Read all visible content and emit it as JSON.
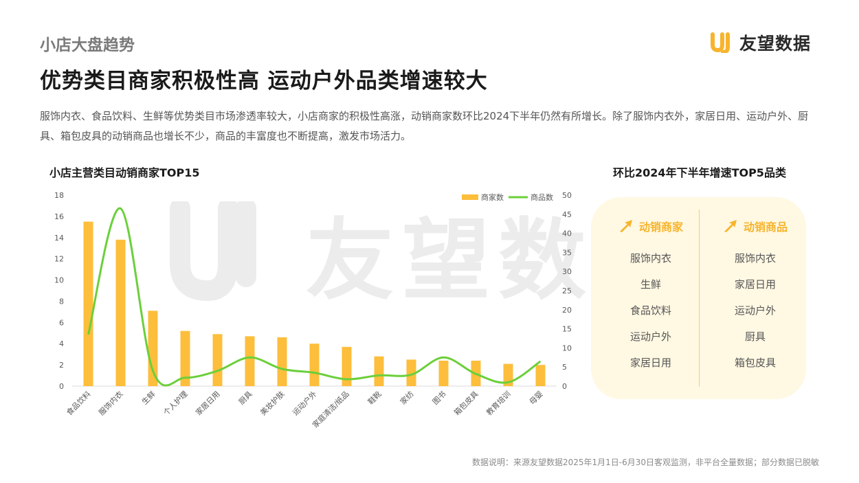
{
  "page": {
    "section_label": "小店大盘趋势",
    "brand": "友望数据",
    "headline": "优势类目商家积极性高 运动户外品类增速较大",
    "summary": "服饰内衣、食品饮料、生鲜等优势类目市场渗透率较大，小店商家的积极性高涨，动销商家数环比2024下半年仍然有所增长。除了服饰内衣外，家居日用、运动户外、厨具、箱包皮具的动销商品也增长不少，商品的丰富度也不断提高，激发市场活力。",
    "footnote": "数据说明：来源友望数据2025年1月1日-6月30日客观监测，非平台全量数据；部分数据已脱敏",
    "watermark": "友望数据"
  },
  "colors": {
    "bar": "#fdbe3c",
    "line": "#6bcf3a",
    "accent": "#f7b42c",
    "panel_bg": "#fff8e3"
  },
  "chart_data": {
    "type": "bar",
    "title": "小店主营类目动销商家TOP15",
    "categories": [
      "食品饮料",
      "服饰内衣",
      "生鲜",
      "个人护理",
      "家居日用",
      "厨具",
      "美妆护肤",
      "运动户外",
      "家庭清洁/纸品",
      "鞋靴",
      "家纺",
      "图书",
      "箱包皮具",
      "教育培训",
      "母婴"
    ],
    "series": [
      {
        "name": "商家数",
        "type": "bar",
        "axis": "left",
        "values": [
          15.5,
          13.8,
          7.1,
          5.2,
          4.9,
          4.7,
          4.6,
          4.0,
          3.7,
          2.8,
          2.5,
          2.4,
          2.4,
          2.1,
          2.0
        ]
      },
      {
        "name": "商品数",
        "type": "line",
        "axis": "right",
        "values": [
          13.5,
          46.5,
          4.0,
          2.2,
          4.0,
          7.5,
          4.5,
          3.5,
          1.8,
          2.8,
          3.0,
          7.5,
          3.2,
          1.0,
          6.5
        ]
      }
    ],
    "ylim_left": [
      0,
      18
    ],
    "yticks_left": [
      0,
      2,
      4,
      6,
      8,
      10,
      12,
      14,
      16,
      18
    ],
    "ylim_right": [
      0,
      50
    ],
    "yticks_right": [
      0,
      5,
      10,
      15,
      20,
      25,
      30,
      35,
      40,
      45,
      50
    ],
    "legend_position": "top-right",
    "grid": false
  },
  "side_panel": {
    "title": "环比2024年下半年增速TOP5品类",
    "columns": [
      {
        "heading": "动销商家",
        "icon": "growth-arrow-icon",
        "items": [
          "服饰内衣",
          "生鲜",
          "食品饮料",
          "运动户外",
          "家居日用"
        ]
      },
      {
        "heading": "动销商品",
        "icon": "growth-arrow-icon",
        "items": [
          "服饰内衣",
          "家居日用",
          "运动户外",
          "厨具",
          "箱包皮具"
        ]
      }
    ]
  }
}
